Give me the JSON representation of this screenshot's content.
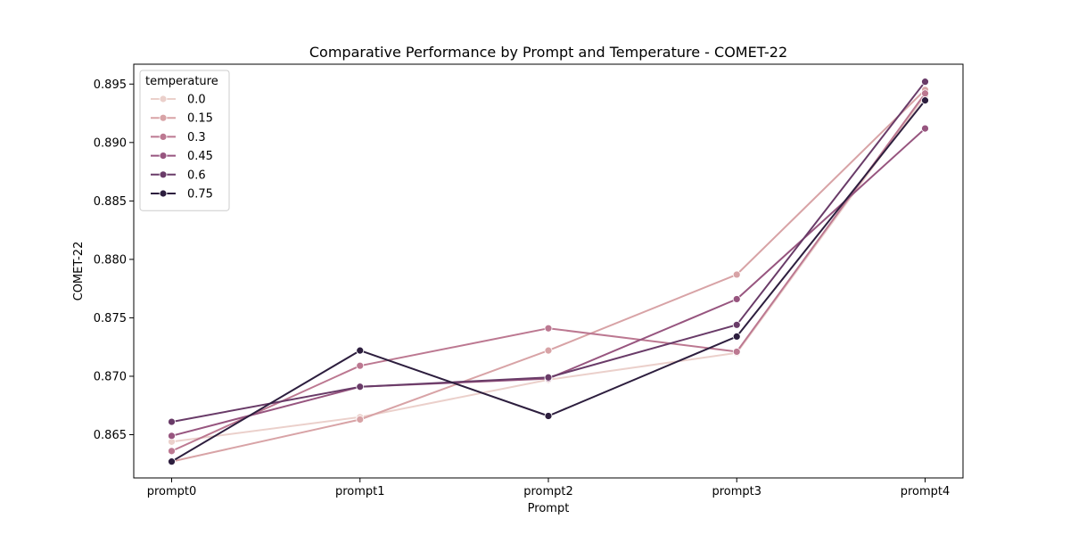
{
  "chart_data": {
    "type": "line",
    "title": "Comparative Performance by Prompt and Temperature - COMET-22",
    "xlabel": "Prompt",
    "ylabel": "COMET-22",
    "categories": [
      "prompt0",
      "prompt1",
      "prompt2",
      "prompt3",
      "prompt4"
    ],
    "ylim": [
      0.8613,
      0.8967
    ],
    "yticks": [
      0.865,
      0.87,
      0.875,
      0.88,
      0.885,
      0.89,
      0.895
    ],
    "ytick_labels": [
      "0.865",
      "0.870",
      "0.875",
      "0.880",
      "0.885",
      "0.890",
      "0.895"
    ],
    "grid": false,
    "legend": {
      "title": "temperature",
      "placement": "top-left"
    },
    "series": [
      {
        "name": "0.0",
        "color": "#ebd0cb",
        "values": [
          0.8644,
          0.8665,
          0.8697,
          0.872,
          0.894
        ]
      },
      {
        "name": "0.15",
        "color": "#d8a3a6",
        "values": [
          0.8627,
          0.8663,
          0.8722,
          0.8787,
          0.8945
        ]
      },
      {
        "name": "0.3",
        "color": "#bc7891",
        "values": [
          0.8636,
          0.8709,
          0.8741,
          0.8721,
          0.8942
        ]
      },
      {
        "name": "0.45",
        "color": "#97557f",
        "values": [
          0.8649,
          0.8691,
          0.8698,
          0.8766,
          0.8912
        ]
      },
      {
        "name": "0.6",
        "color": "#693b68",
        "values": [
          0.8661,
          0.8691,
          0.8699,
          0.8744,
          0.8952
        ]
      },
      {
        "name": "0.75",
        "color": "#2d1e3e",
        "values": [
          0.8627,
          0.8722,
          0.8666,
          0.8734,
          0.8936
        ]
      }
    ]
  }
}
